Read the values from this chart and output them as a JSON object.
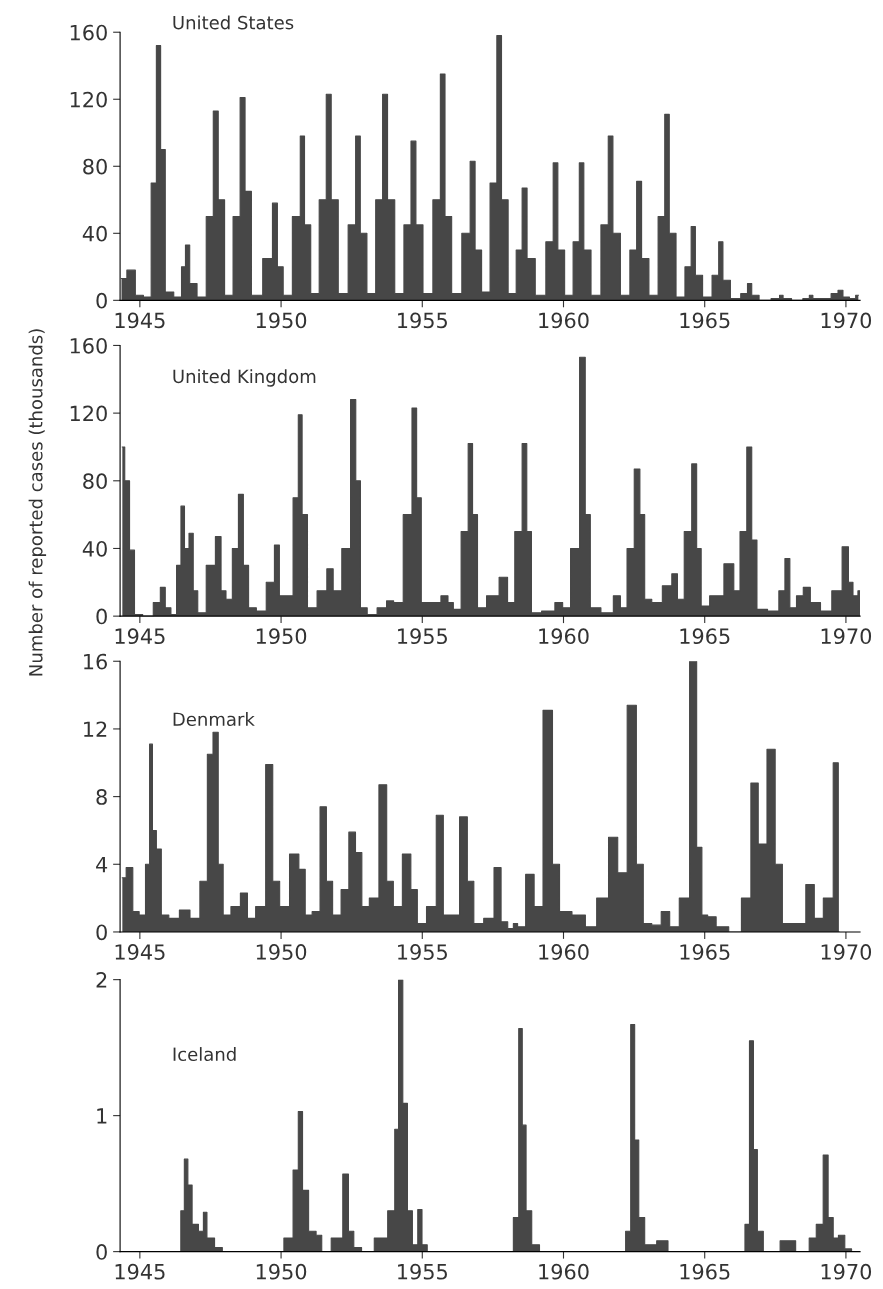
{
  "chart_data": [
    {
      "type": "area",
      "title": "United States",
      "ylabel": null,
      "color": "#474747",
      "x": [
        1944.35,
        1944.73,
        1944.95,
        1945.3,
        1945.5,
        1945.67,
        1945.8,
        1946.0,
        1946.4,
        1946.55,
        1946.68,
        1946.85,
        1947.2,
        1947.5,
        1947.7,
        1947.85,
        1948.15,
        1948.45,
        1948.65,
        1948.8,
        1949.1,
        1949.6,
        1949.79,
        1949.95,
        1950.2,
        1950.6,
        1950.76,
        1950.9,
        1951.2,
        1951.5,
        1951.7,
        1951.85,
        1952.2,
        1952.55,
        1952.73,
        1952.88,
        1953.2,
        1953.5,
        1953.69,
        1953.85,
        1954.2,
        1954.5,
        1954.7,
        1954.85,
        1955.2,
        1955.55,
        1955.73,
        1955.88,
        1956.2,
        1956.6,
        1956.79,
        1956.95,
        1957.25,
        1957.55,
        1957.73,
        1957.88,
        1958.2,
        1958.45,
        1958.62,
        1958.8,
        1959.2,
        1959.55,
        1959.72,
        1959.88,
        1960.2,
        1960.48,
        1960.64,
        1960.8,
        1961.15,
        1961.5,
        1961.67,
        1961.83,
        1962.2,
        1962.5,
        1962.68,
        1962.85,
        1963.2,
        1963.5,
        1963.67,
        1963.82,
        1964.15,
        1964.45,
        1964.59,
        1964.75,
        1965.1,
        1965.42,
        1965.57,
        1965.72,
        1966.1,
        1966.45,
        1966.58,
        1966.75,
        1967.1,
        1967.6,
        1967.7,
        1967.85,
        1968.3,
        1968.65,
        1968.76,
        1968.9,
        1969.3,
        1969.65,
        1969.79,
        1970.0,
        1970.25,
        1970.44
      ],
      "values": [
        13,
        18,
        3,
        2,
        70,
        152,
        90,
        5,
        2,
        20,
        33,
        10,
        2,
        50,
        113,
        60,
        3,
        50,
        121,
        65,
        3,
        25,
        58,
        20,
        3,
        50,
        98,
        45,
        4,
        60,
        123,
        60,
        4,
        45,
        98,
        40,
        4,
        60,
        123,
        60,
        4,
        45,
        95,
        45,
        4,
        60,
        135,
        50,
        4,
        40,
        83,
        30,
        5,
        70,
        158,
        60,
        4,
        30,
        67,
        25,
        3,
        35,
        82,
        30,
        3,
        35,
        82,
        30,
        3,
        45,
        98,
        40,
        3,
        30,
        71,
        25,
        3,
        50,
        111,
        40,
        2,
        20,
        44,
        15,
        2,
        15,
        35,
        12,
        1,
        4,
        10,
        3,
        0,
        1,
        3,
        1,
        0,
        1,
        3,
        1,
        1,
        4,
        6,
        2,
        1,
        3
      ],
      "xlim": [
        1944.3,
        1970.5
      ],
      "xticks": [
        1945,
        1950,
        1955,
        1960,
        1965,
        1970
      ],
      "ylim": [
        0,
        160
      ],
      "yticks": [
        0,
        40,
        80,
        120,
        160
      ],
      "grid": false,
      "legend": false
    },
    {
      "type": "area",
      "title": "United Kingdom",
      "ylabel": "Number of reported cases (thousands)",
      "color": "#474747",
      "x": [
        1944.38,
        1944.55,
        1944.72,
        1944.9,
        1945.3,
        1945.65,
        1945.8,
        1946.0,
        1946.2,
        1946.4,
        1946.51,
        1946.65,
        1946.83,
        1946.95,
        1947.15,
        1947.55,
        1947.8,
        1947.95,
        1948.15,
        1948.4,
        1948.58,
        1948.75,
        1948.95,
        1949.3,
        1949.65,
        1949.88,
        1950.0,
        1950.3,
        1950.55,
        1950.67,
        1950.82,
        1951.05,
        1951.5,
        1951.74,
        1951.95,
        1952.35,
        1952.57,
        1952.72,
        1952.9,
        1953.2,
        1953.6,
        1953.87,
        1954.1,
        1954.55,
        1954.72,
        1954.88,
        1955.05,
        1955.5,
        1955.82,
        1956.0,
        1956.2,
        1956.55,
        1956.7,
        1956.86,
        1957.05,
        1957.5,
        1957.94,
        1958.1,
        1958.45,
        1958.62,
        1958.78,
        1958.95,
        1959.5,
        1959.89,
        1960.05,
        1960.45,
        1960.69,
        1960.85,
        1961.05,
        1961.6,
        1961.93,
        1962.1,
        1962.4,
        1962.61,
        1962.8,
        1962.95,
        1963.3,
        1963.7,
        1963.97,
        1964.1,
        1964.45,
        1964.63,
        1964.8,
        1964.95,
        1965.4,
        1965.96,
        1966.1,
        1966.4,
        1966.58,
        1966.75,
        1966.95,
        1967.5,
        1967.75,
        1967.93,
        1968.1,
        1968.4,
        1968.58,
        1968.9,
        1969.3,
        1969.7,
        1970.03,
        1970.15,
        1970.35,
        1970.5
      ],
      "values": [
        100,
        80,
        39,
        1,
        0,
        8,
        17,
        5,
        1,
        30,
        65,
        40,
        49,
        15,
        2,
        30,
        47,
        15,
        10,
        40,
        72,
        30,
        5,
        3,
        20,
        42,
        12,
        12,
        70,
        119,
        60,
        5,
        15,
        28,
        15,
        40,
        128,
        80,
        5,
        1,
        5,
        9,
        8,
        60,
        123,
        70,
        8,
        8,
        12,
        8,
        4,
        50,
        102,
        60,
        5,
        12,
        23,
        8,
        50,
        102,
        50,
        2,
        3,
        8,
        5,
        40,
        153,
        60,
        5,
        2,
        12,
        5,
        40,
        87,
        60,
        10,
        8,
        18,
        25,
        10,
        50,
        90,
        40,
        6,
        12,
        31,
        15,
        50,
        100,
        45,
        4,
        3,
        15,
        34,
        5,
        12,
        17,
        8,
        3,
        15,
        41,
        20,
        12,
        15
      ],
      "xlim": [
        1944.3,
        1970.5
      ],
      "xticks": [
        1945,
        1950,
        1955,
        1960,
        1965,
        1970
      ],
      "ylim": [
        0,
        160
      ],
      "yticks": [
        0,
        40,
        80,
        120,
        160
      ],
      "grid": false,
      "legend": false
    },
    {
      "type": "area",
      "title": "Denmark",
      "ylabel": null,
      "color": "#474747",
      "x": [
        1944.38,
        1944.65,
        1944.85,
        1945.1,
        1945.3,
        1945.39,
        1945.5,
        1945.67,
        1945.85,
        1946.2,
        1946.6,
        1946.95,
        1947.3,
        1947.48,
        1947.7,
        1947.85,
        1948.05,
        1948.4,
        1948.72,
        1948.9,
        1949.3,
        1949.61,
        1949.8,
        1950.1,
        1950.5,
        1950.76,
        1950.95,
        1951.25,
        1951.51,
        1951.7,
        1951.95,
        1952.3,
        1952.5,
        1952.77,
        1952.95,
        1953.3,
        1953.63,
        1953.85,
        1954.1,
        1954.49,
        1954.7,
        1954.95,
        1955.35,
        1955.64,
        1955.85,
        1956.15,
        1956.49,
        1956.7,
        1956.95,
        1957.4,
        1957.68,
        1957.9,
        1958.15,
        1958.3,
        1958.45,
        1958.87,
        1959.05,
        1959.5,
        1959.72,
        1960.0,
        1960.6,
        1960.95,
        1961.4,
        1961.79,
        1962.05,
        1962.46,
        1962.7,
        1962.95,
        1963.3,
        1963.62,
        1963.9,
        1964.3,
        1964.63,
        1964.8,
        1965.0,
        1965.21,
        1965.6,
        1966.1,
        1966.5,
        1966.77,
        1967.02,
        1967.39,
        1967.6,
        1967.9,
        1968.4,
        1968.76,
        1969.0,
        1969.4,
        1969.7,
        1969.76
      ],
      "values": [
        3.2,
        3.8,
        1.2,
        1.0,
        4.0,
        11.1,
        6.0,
        4.9,
        1.0,
        0.8,
        1.3,
        0.8,
        3.0,
        10.5,
        11.8,
        4.0,
        1.0,
        1.5,
        2.3,
        0.8,
        1.5,
        9.9,
        3.0,
        1.5,
        4.6,
        3.7,
        1.0,
        1.2,
        7.4,
        3.0,
        1.0,
        2.5,
        5.9,
        4.7,
        1.5,
        2.0,
        8.7,
        3.0,
        1.5,
        4.6,
        2.5,
        0.5,
        1.5,
        6.9,
        1.0,
        1.0,
        6.8,
        3.0,
        0.5,
        0.8,
        3.8,
        0.6,
        0.2,
        0.5,
        0.3,
        3.4,
        1.5,
        13.1,
        4.0,
        1.2,
        1.0,
        0.3,
        2.0,
        5.6,
        3.5,
        13.4,
        4.0,
        0.5,
        0.4,
        1.2,
        0.3,
        2.0,
        16,
        5.0,
        1.0,
        0.9,
        0.3,
        0,
        2.0,
        8.8,
        5.2,
        10.8,
        4.0,
        0.5,
        0.5,
        2.8,
        0.8,
        2.0,
        10.0,
        0
      ],
      "xlim": [
        1944.3,
        1970.5
      ],
      "xticks": [
        1945,
        1950,
        1955,
        1960,
        1965,
        1970
      ],
      "ylim": [
        0,
        16
      ],
      "yticks": [
        0,
        4,
        8,
        12,
        16
      ],
      "grid": false,
      "legend": false
    },
    {
      "type": "area",
      "title": "Iceland",
      "ylabel": null,
      "color": "#474747",
      "x": [
        1944.4,
        1946.4,
        1946.5,
        1946.65,
        1946.75,
        1946.95,
        1947.2,
        1947.3,
        1947.45,
        1947.84,
        1948.0,
        1949.9,
        1950.3,
        1950.55,
        1950.67,
        1950.85,
        1951.1,
        1951.38,
        1951.5,
        1952.05,
        1952.32,
        1952.45,
        1952.7,
        1953.0,
        1953.6,
        1953.95,
        1954.1,
        1954.22,
        1954.4,
        1954.55,
        1954.75,
        1954.93,
        1955.05,
        1955.3,
        1958.1,
        1958.35,
        1958.48,
        1958.6,
        1958.75,
        1959.0,
        1959.3,
        1962.1,
        1962.3,
        1962.46,
        1962.58,
        1962.75,
        1963.0,
        1963.6,
        1963.8,
        1966.35,
        1966.5,
        1966.67,
        1966.78,
        1966.95,
        1967.2,
        1968.14,
        1968.3,
        1968.6,
        1968.8,
        1969.1,
        1969.29,
        1969.45,
        1969.65,
        1969.82,
        1970.1,
        1970.3
      ],
      "values": [
        0,
        0,
        0.3,
        0.68,
        0.49,
        0.2,
        0.15,
        0.29,
        0.1,
        0.03,
        0,
        0,
        0.1,
        0.6,
        1.03,
        0.45,
        0.15,
        0.12,
        0,
        0.1,
        0.57,
        0.15,
        0.03,
        0,
        0.1,
        0.3,
        0.9,
        2.0,
        1.09,
        0.3,
        0.05,
        0.31,
        0.05,
        0,
        0,
        0.25,
        1.64,
        0.93,
        0.3,
        0.05,
        0,
        0,
        0.15,
        1.67,
        0.82,
        0.25,
        0.05,
        0.08,
        0,
        0,
        0.2,
        1.55,
        0.75,
        0.15,
        0,
        0.08,
        0,
        0,
        0.1,
        0.2,
        0.71,
        0.25,
        0.1,
        0.12,
        0.02,
        0
      ],
      "xlim": [
        1944.3,
        1970.5
      ],
      "xticks": [
        1945,
        1950,
        1955,
        1960,
        1965,
        1970
      ],
      "ylim": [
        0,
        2
      ],
      "yticks": [
        0,
        1,
        2
      ],
      "grid": false,
      "legend": false
    }
  ]
}
